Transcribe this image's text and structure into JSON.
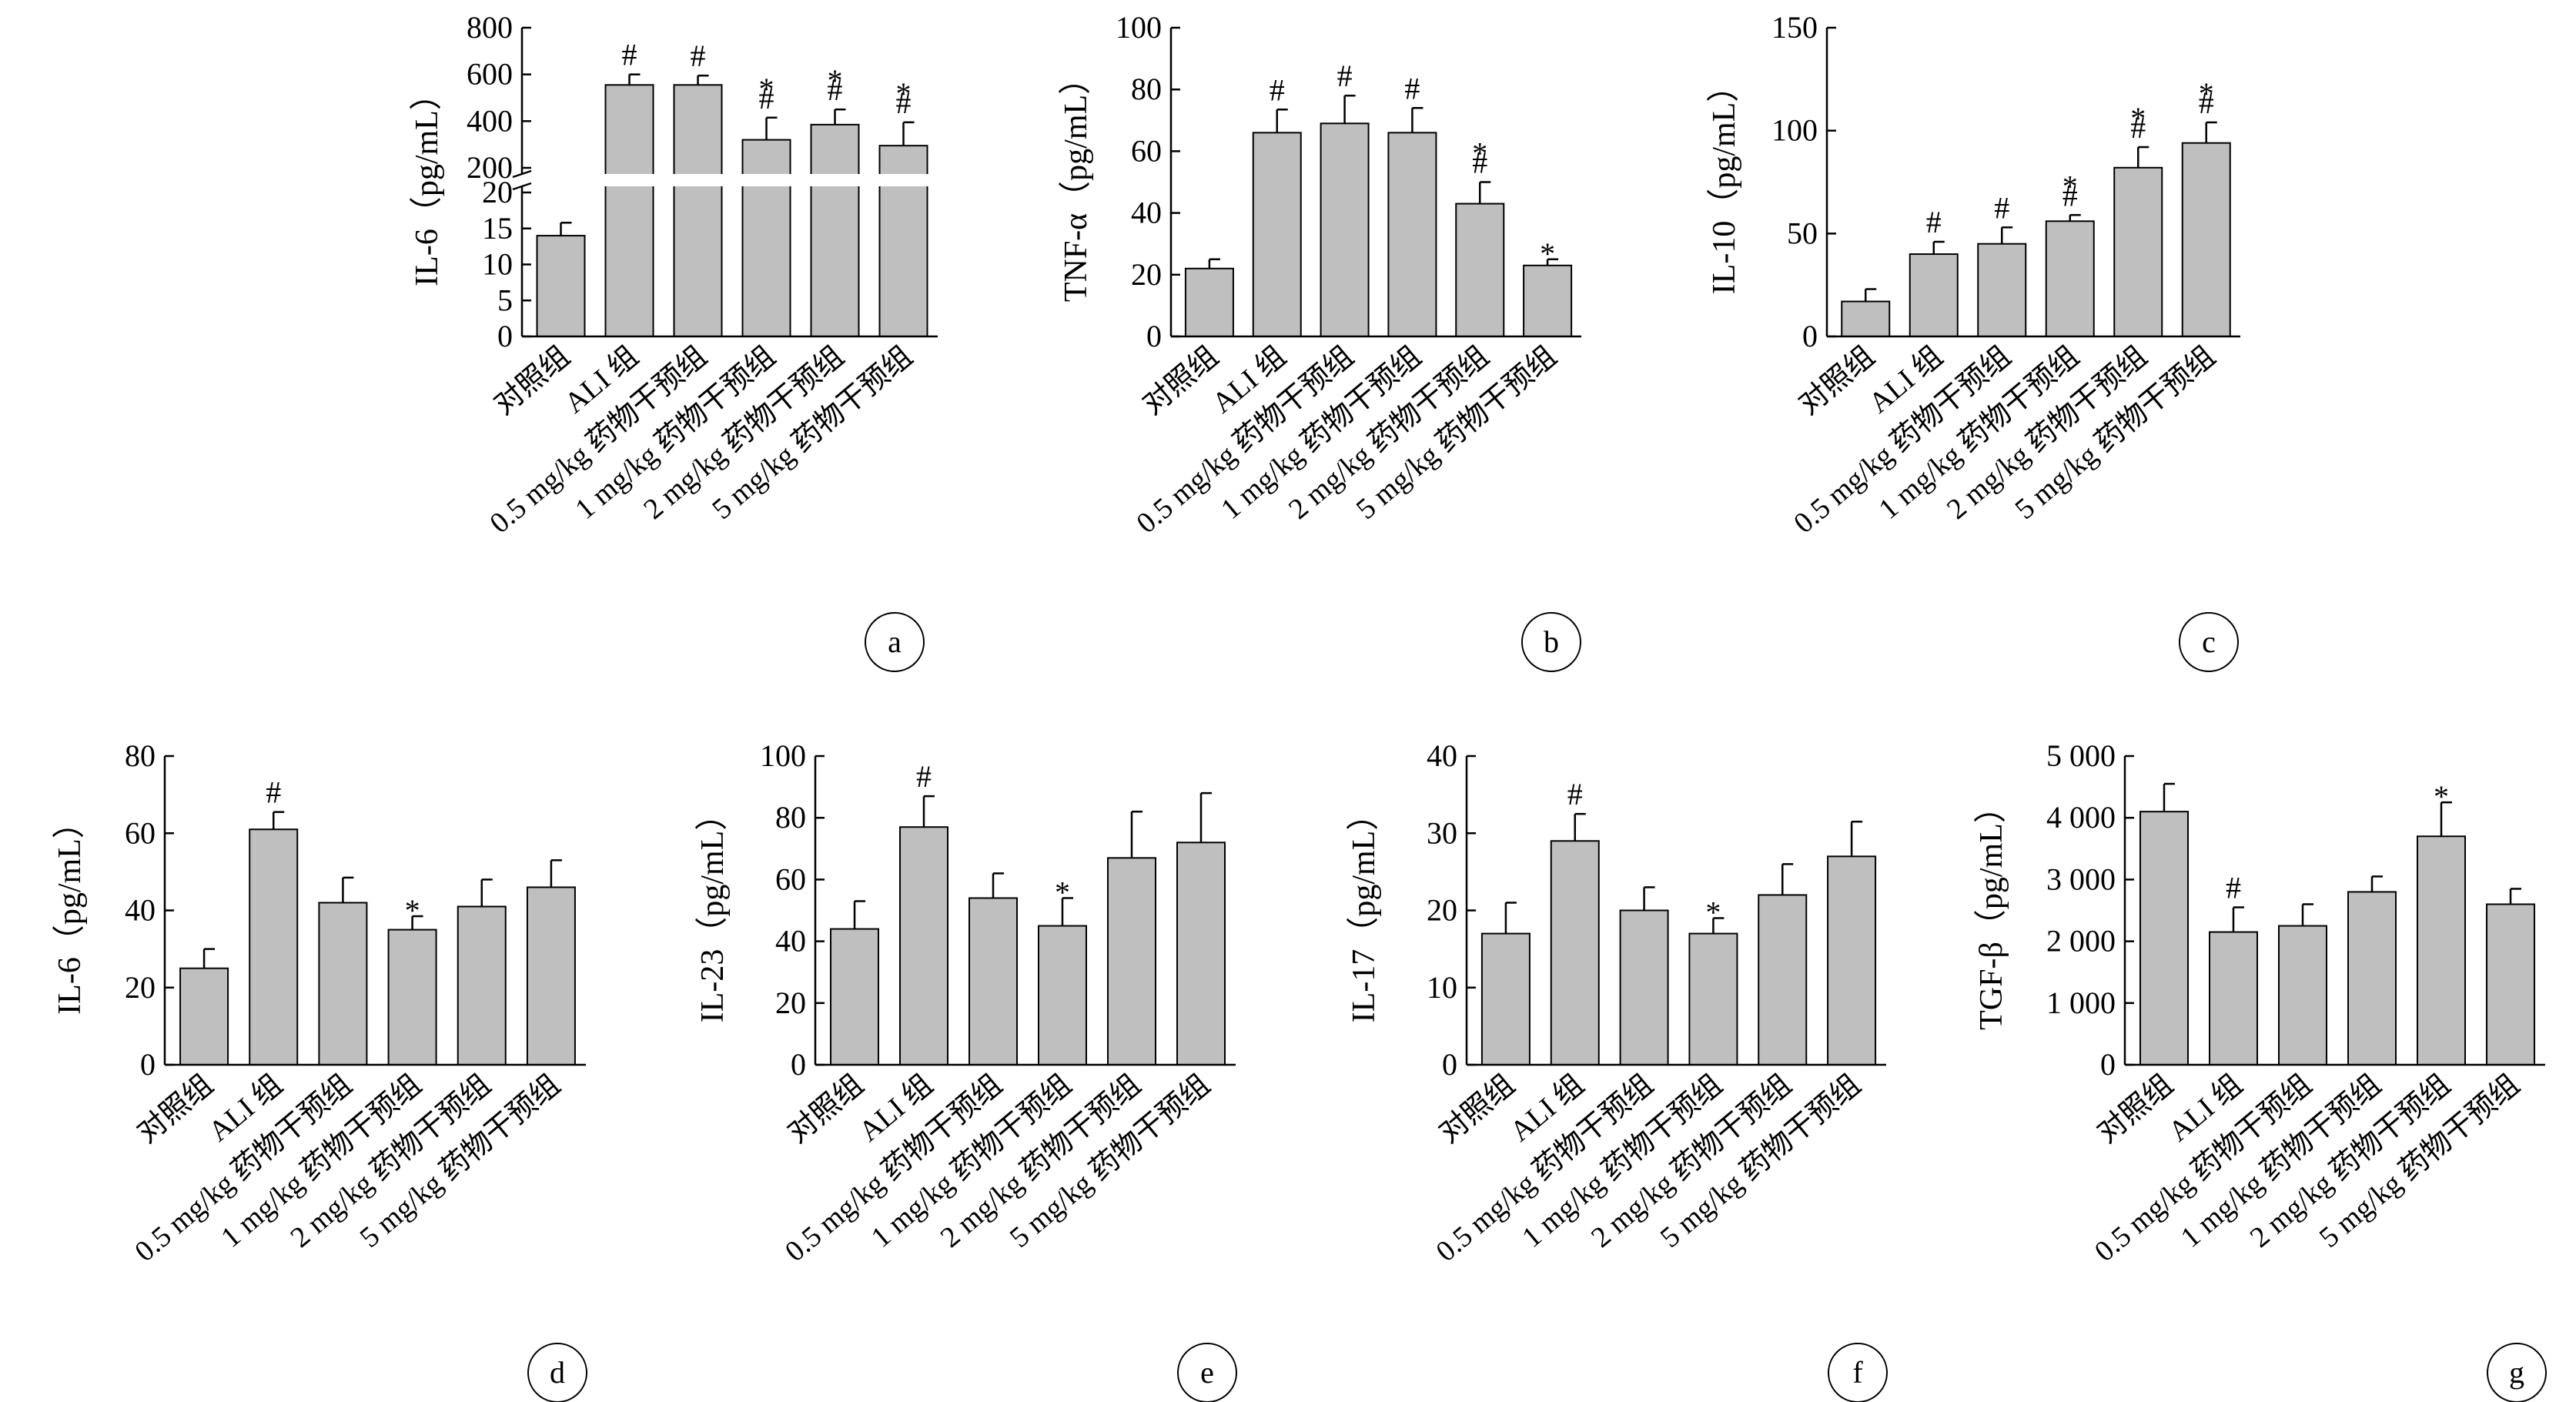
{
  "colors": {
    "bar_fill": "#bfbfbf",
    "axis": "#000000",
    "background": "#ffffff"
  },
  "chart_data": [
    {
      "panel": "a",
      "type": "bar",
      "broken_axis": true,
      "ylabel": "IL-6（pg/mL）",
      "yticks": [
        "0",
        "5",
        "10",
        "15",
        "20",
        "200",
        "400",
        "600",
        "800"
      ],
      "ylim_lower": [
        0,
        20
      ],
      "ylim_upper": [
        200,
        800
      ],
      "categories": [
        "对照组",
        "ALI 组",
        "0.5 mg/kg 药物干预组",
        "1 mg/kg 药物干预组",
        "2 mg/kg 药物干预组",
        "5 mg/kg 药物干预组"
      ],
      "values": [
        14,
        555,
        555,
        320,
        385,
        295
      ],
      "errors": [
        1.8,
        45,
        40,
        95,
        65,
        100
      ],
      "significance": [
        "",
        "#",
        "#",
        "#*",
        "#*",
        "#*"
      ]
    },
    {
      "panel": "b",
      "type": "bar",
      "ylabel": "TNF-α（pg/mL）",
      "yticks": [
        "0",
        "20",
        "40",
        "60",
        "80",
        "100"
      ],
      "ylim": [
        0,
        100
      ],
      "categories": [
        "对照组",
        "ALI 组",
        "0.5 mg/kg 药物干预组",
        "1 mg/kg 药物干预组",
        "2 mg/kg 药物干预组",
        "5 mg/kg 药物干预组"
      ],
      "values": [
        22,
        66,
        69,
        66,
        43,
        23
      ],
      "errors": [
        3,
        7.5,
        9,
        8,
        7,
        2
      ],
      "significance": [
        "",
        "#",
        "#",
        "#",
        "#*",
        "*"
      ]
    },
    {
      "panel": "c",
      "type": "bar",
      "ylabel": "IL-10（pg/mL）",
      "yticks": [
        "0",
        "50",
        "100",
        "150"
      ],
      "ylim": [
        0,
        150
      ],
      "categories": [
        "对照组",
        "ALI 组",
        "0.5 mg/kg 药物干预组",
        "1 mg/kg 药物干预组",
        "2 mg/kg 药物干预组",
        "5 mg/kg 药物干预组"
      ],
      "values": [
        17,
        40,
        45,
        56,
        82,
        94
      ],
      "errors": [
        6,
        6,
        8,
        3,
        10,
        10
      ],
      "significance": [
        "",
        "#",
        "#",
        "#*",
        "#*",
        "#*"
      ]
    },
    {
      "panel": "d",
      "type": "bar",
      "ylabel": "IL-6（pg/mL）",
      "yticks": [
        "0",
        "20",
        "40",
        "60",
        "80"
      ],
      "ylim": [
        0,
        80
      ],
      "categories": [
        "对照组",
        "ALI 组",
        "0.5 mg/kg 药物干预组",
        "1 mg/kg 药物干预组",
        "2 mg/kg 药物干预组",
        "5 mg/kg 药物干预组"
      ],
      "values": [
        25,
        61,
        42,
        35,
        41,
        46
      ],
      "errors": [
        5,
        4.5,
        6.5,
        3.5,
        7,
        7
      ],
      "significance": [
        "",
        "#",
        "",
        "*",
        "",
        ""
      ]
    },
    {
      "panel": "e",
      "type": "bar",
      "ylabel": "IL-23（pg/mL）",
      "yticks": [
        "0",
        "20",
        "40",
        "60",
        "80",
        "100"
      ],
      "ylim": [
        0,
        100
      ],
      "categories": [
        "对照组",
        "ALI 组",
        "0.5 mg/kg 药物干预组",
        "1 mg/kg 药物干预组",
        "2 mg/kg 药物干预组",
        "5 mg/kg 药物干预组"
      ],
      "values": [
        44,
        77,
        54,
        45,
        67,
        72
      ],
      "errors": [
        9,
        10,
        8,
        9,
        15,
        16
      ],
      "significance": [
        "",
        "#",
        "",
        "*",
        "",
        ""
      ]
    },
    {
      "panel": "f",
      "type": "bar",
      "ylabel": "IL-17（pg/mL）",
      "yticks": [
        "0",
        "10",
        "20",
        "30",
        "40"
      ],
      "ylim": [
        0,
        40
      ],
      "categories": [
        "对照组",
        "ALI 组",
        "0.5 mg/kg 药物干预组",
        "1 mg/kg 药物干预组",
        "2 mg/kg 药物干预组",
        "5 mg/kg 药物干预组"
      ],
      "values": [
        17,
        29,
        20,
        17,
        22,
        27
      ],
      "errors": [
        4,
        3.5,
        3,
        2,
        4,
        4.5
      ],
      "significance": [
        "",
        "#",
        "",
        "*",
        "",
        ""
      ]
    },
    {
      "panel": "g",
      "type": "bar",
      "ylabel": "TGF-β（pg/mL）",
      "yticks": [
        "0",
        "1 000",
        "2 000",
        "3 000",
        "4 000",
        "5 000"
      ],
      "ylim": [
        0,
        5000
      ],
      "categories": [
        "对照组",
        "ALI 组",
        "0.5 mg/kg 药物干预组",
        "1 mg/kg 药物干预组",
        "2 mg/kg 药物干预组",
        "5 mg/kg 药物干预组"
      ],
      "values": [
        4100,
        2150,
        2250,
        2800,
        3700,
        2600
      ],
      "errors": [
        450,
        400,
        350,
        250,
        550,
        250
      ],
      "significance": [
        "",
        "#",
        "",
        "",
        "*",
        ""
      ]
    }
  ]
}
